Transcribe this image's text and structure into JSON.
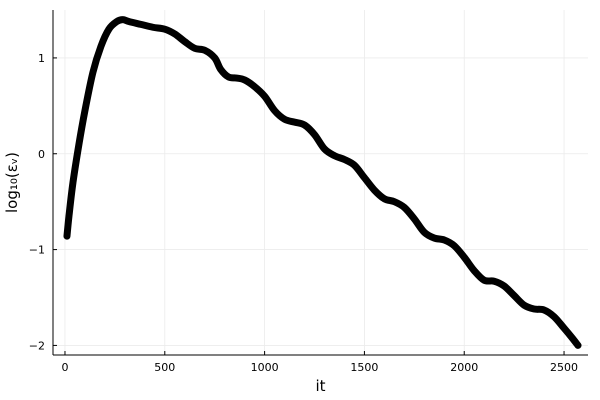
{
  "chart_data": {
    "type": "line",
    "title": "",
    "xlabel": "it",
    "ylabel": "log₁₀(εᵥ)",
    "xlim": [
      -60,
      2620
    ],
    "ylim": [
      -2.1,
      1.5
    ],
    "xticks": [
      0,
      500,
      1000,
      1500,
      2000,
      2500
    ],
    "yticks": [
      -2,
      -1,
      0,
      1
    ],
    "xtick_labels": [
      "0",
      "500",
      "1000",
      "1500",
      "2000",
      "2500"
    ],
    "ytick_labels": [
      "−2",
      "−1",
      "0",
      "1"
    ],
    "grid": true,
    "legend": "none",
    "series": [
      {
        "color": "#000000",
        "x": [
          10,
          20,
          40,
          70,
          100,
          140,
          180,
          220,
          260,
          290,
          320,
          380,
          440,
          500,
          550,
          600,
          650,
          700,
          750,
          780,
          820,
          860,
          900,
          950,
          1000,
          1050,
          1100,
          1150,
          1200,
          1250,
          1300,
          1350,
          1400,
          1450,
          1500,
          1550,
          1600,
          1650,
          1700,
          1750,
          1800,
          1850,
          1900,
          1950,
          2000,
          2050,
          2100,
          2150,
          2200,
          2250,
          2300,
          2350,
          2400,
          2450,
          2500,
          2540,
          2570
        ],
        "y": [
          -0.86,
          -0.65,
          -0.3,
          0.1,
          0.45,
          0.85,
          1.12,
          1.3,
          1.38,
          1.4,
          1.38,
          1.35,
          1.32,
          1.3,
          1.25,
          1.17,
          1.1,
          1.08,
          1.0,
          0.88,
          0.8,
          0.79,
          0.77,
          0.7,
          0.6,
          0.45,
          0.36,
          0.33,
          0.3,
          0.2,
          0.05,
          -0.02,
          -0.06,
          -0.12,
          -0.25,
          -0.38,
          -0.47,
          -0.5,
          -0.56,
          -0.68,
          -0.82,
          -0.88,
          -0.9,
          -0.96,
          -1.08,
          -1.22,
          -1.32,
          -1.33,
          -1.38,
          -1.48,
          -1.58,
          -1.62,
          -1.63,
          -1.7,
          -1.82,
          -1.92,
          -2.0
        ]
      }
    ]
  }
}
